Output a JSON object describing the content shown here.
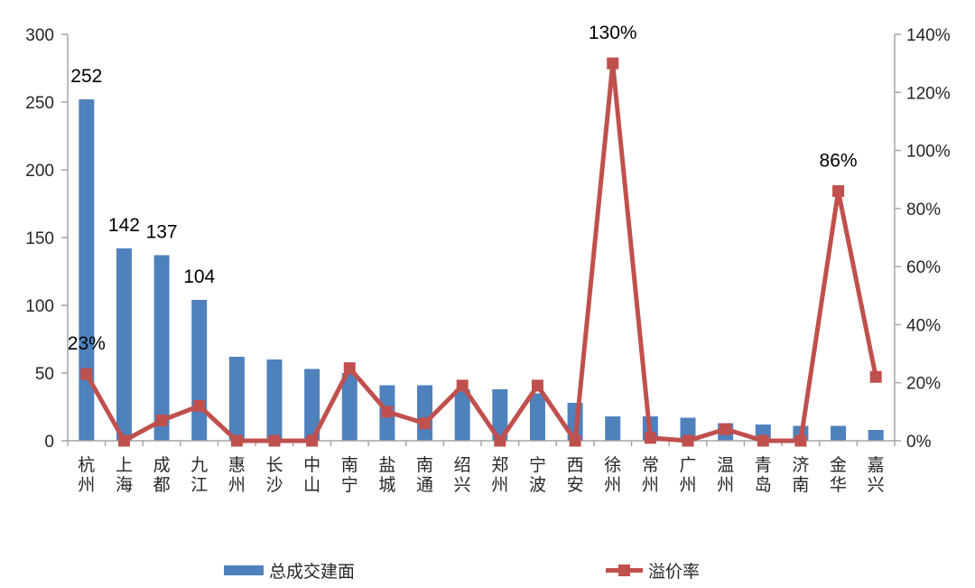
{
  "chart_data": {
    "type": "combo_bar_line_dual_axis",
    "categories": [
      "杭州",
      "上海",
      "成都",
      "九江",
      "惠州",
      "长沙",
      "中山",
      "南宁",
      "盐城",
      "南通",
      "绍兴",
      "郑州",
      "宁波",
      "西安",
      "徐州",
      "常州",
      "广州",
      "温州",
      "青岛",
      "济南",
      "金华",
      "嘉兴"
    ],
    "series": [
      {
        "name": "总成交建面",
        "type": "bar",
        "y_axis": "left",
        "color": "#4F81BD",
        "values": [
          252,
          142,
          137,
          104,
          62,
          60,
          53,
          50,
          41,
          41,
          38,
          38,
          35,
          28,
          18,
          18,
          17,
          13,
          12,
          11,
          11,
          8
        ]
      },
      {
        "name": "溢价率",
        "type": "line",
        "marker": "square",
        "y_axis": "right",
        "color": "#C0504D",
        "values_percent": [
          23,
          0,
          7,
          12,
          0,
          0,
          0,
          25,
          10,
          6,
          19,
          0,
          19,
          0,
          130,
          1,
          0,
          4,
          0,
          0,
          86,
          22
        ]
      }
    ],
    "left_axis": {
      "min": 0,
      "max": 300,
      "tick_step": 50,
      "tick_labels": [
        "300",
        "250",
        "200",
        "150",
        "100",
        "50",
        "0"
      ]
    },
    "right_axis": {
      "min": 0,
      "max": 140,
      "tick_step": 20,
      "tick_labels": [
        "140%",
        "120%",
        "100%",
        "80%",
        "60%",
        "40%",
        "20%",
        "0%"
      ]
    },
    "annotations": {
      "bar_value_labels": [
        {
          "index": 0,
          "text": "252"
        },
        {
          "index": 1,
          "text": "142"
        },
        {
          "index": 2,
          "text": "137"
        },
        {
          "index": 3,
          "text": "104"
        }
      ],
      "line_value_labels": [
        {
          "index": 0,
          "text": "23%"
        },
        {
          "index": 14,
          "text": "130%"
        },
        {
          "index": 20,
          "text": "86%"
        }
      ]
    },
    "legend": [
      {
        "label": "总成交建面",
        "swatch": "bar",
        "color": "#4F81BD"
      },
      {
        "label": "溢价率",
        "swatch": "line-with-square-marker",
        "color": "#C0504D"
      }
    ],
    "grid": false,
    "legend_position": "bottom"
  },
  "colors": {
    "bar": "#4F81BD",
    "line": "#C0504D",
    "axis": "#A6A6A6",
    "tick_text": "#262626",
    "label_text": "#000000",
    "background": "#FFFFFF"
  }
}
